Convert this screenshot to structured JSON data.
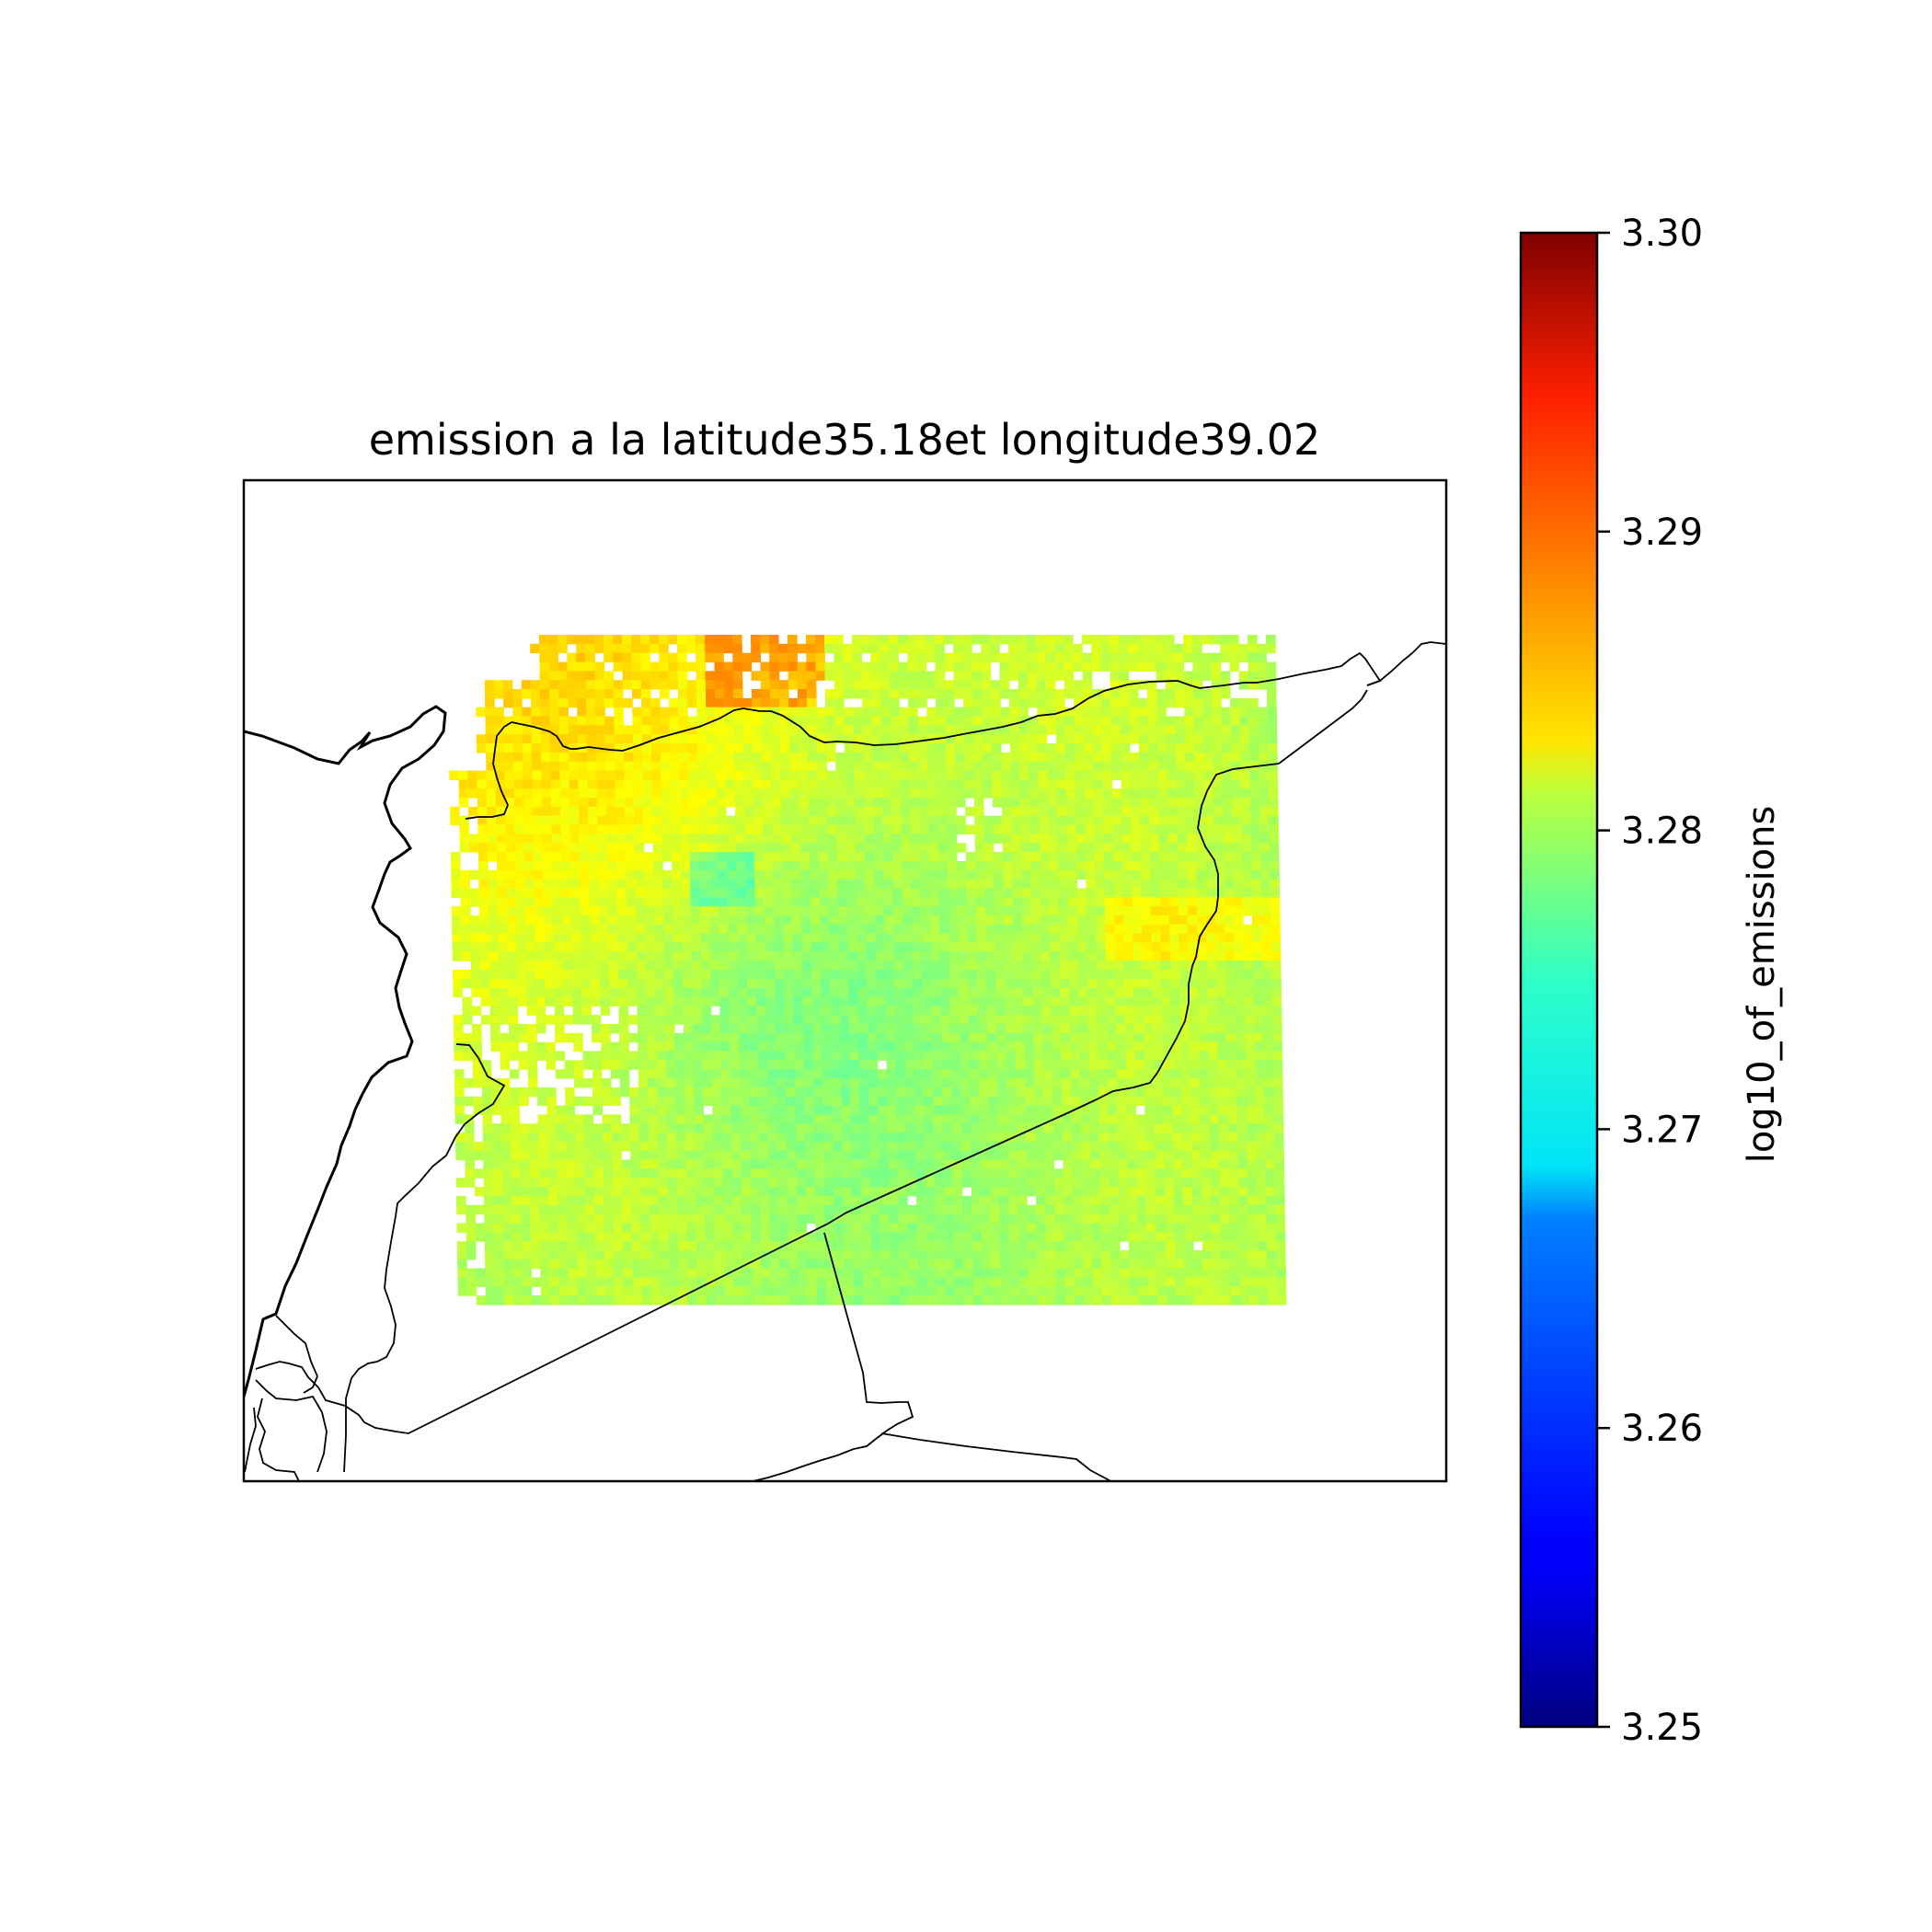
{
  "chart_data": {
    "type": "heatmap",
    "title": "emission a la latitude35.18et longitude39.02",
    "colorbar": {
      "label": "log10_of_emissions",
      "range": [
        3.25,
        3.3
      ],
      "ticks": [
        "3.25",
        "3.26",
        "3.27",
        "3.28",
        "3.29",
        "3.30"
      ],
      "colormap": "jet"
    },
    "field_summary": {
      "typical_value": 3.277,
      "min_value": 3.268,
      "max_value": 3.287,
      "high_region": "north-west",
      "low_region": "centre and south"
    },
    "basemap": {
      "coastlines": true,
      "country_borders": true
    }
  }
}
